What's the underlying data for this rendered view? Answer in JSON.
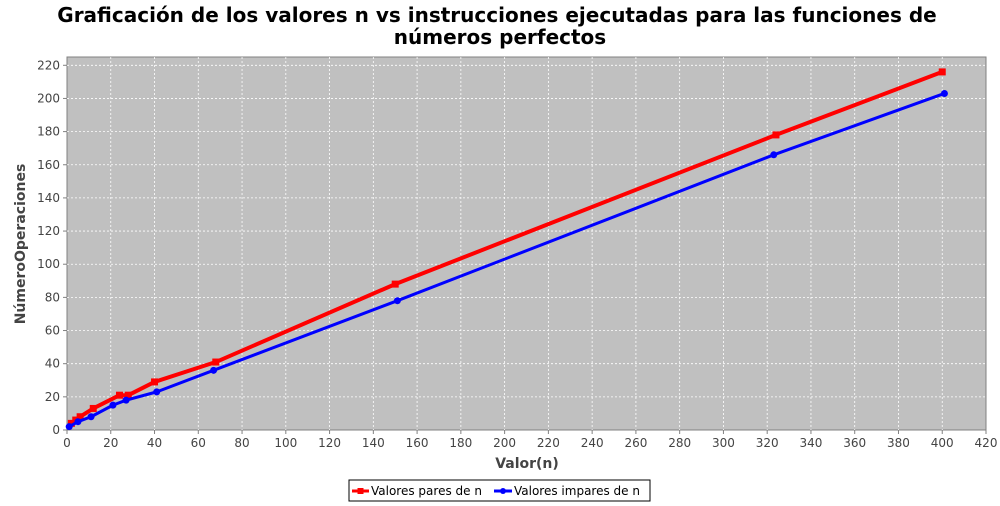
{
  "chart_data": {
    "type": "line",
    "title_lines": [
      "Graficación de los valores n vs instrucciones ejecutadas para las funciones de",
      "números perfectos"
    ],
    "xlabel": "Valor(n)",
    "ylabel": "NúmeroOperaciones",
    "xlim": [
      0,
      420
    ],
    "ylim": [
      0,
      225
    ],
    "x_ticks": [
      "0",
      "20",
      "40",
      "60",
      "80",
      "100",
      "120",
      "140",
      "160",
      "180",
      "200",
      "220",
      "240",
      "260",
      "280",
      "300",
      "320",
      "340",
      "360",
      "380",
      "400",
      "420"
    ],
    "y_ticks": [
      "0",
      "20",
      "40",
      "60",
      "80",
      "100",
      "120",
      "140",
      "160",
      "180",
      "200",
      "220"
    ],
    "grid": true,
    "legend_position": "bottom",
    "series": [
      {
        "name": "Valores pares de n",
        "color": "#ff0000",
        "marker": "square",
        "points": [
          {
            "x": 2,
            "y": 4
          },
          {
            "x": 4,
            "y": 6
          },
          {
            "x": 6,
            "y": 8
          },
          {
            "x": 12,
            "y": 13
          },
          {
            "x": 24,
            "y": 21
          },
          {
            "x": 28,
            "y": 21
          },
          {
            "x": 40,
            "y": 29
          },
          {
            "x": 68,
            "y": 41
          },
          {
            "x": 150,
            "y": 88
          },
          {
            "x": 324,
            "y": 178
          },
          {
            "x": 400,
            "y": 216
          }
        ]
      },
      {
        "name": "Valores impares de n",
        "color": "#0000ff",
        "marker": "circle",
        "points": [
          {
            "x": 1,
            "y": 2
          },
          {
            "x": 5,
            "y": 5
          },
          {
            "x": 11,
            "y": 8
          },
          {
            "x": 21,
            "y": 15
          },
          {
            "x": 27,
            "y": 18
          },
          {
            "x": 41,
            "y": 23
          },
          {
            "x": 67,
            "y": 36
          },
          {
            "x": 151,
            "y": 78
          },
          {
            "x": 323,
            "y": 166
          },
          {
            "x": 401,
            "y": 203
          }
        ]
      }
    ]
  }
}
